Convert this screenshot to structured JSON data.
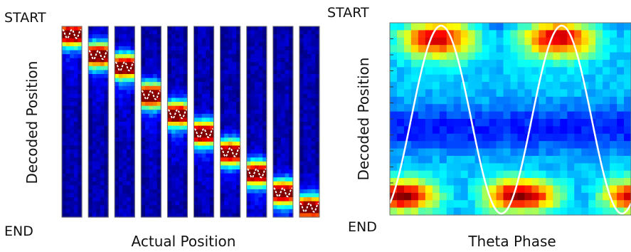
{
  "chart_data": [
    {
      "type": "heatmap",
      "panel": "left",
      "ylabel": "Decoded Position",
      "xlabel": "Actual Position",
      "y_top_label": "START",
      "y_bottom_label": "END",
      "colormap": "jet",
      "strips": 10,
      "decoded_peak_fraction": [
        0.04,
        0.15,
        0.21,
        0.36,
        0.46,
        0.56,
        0.66,
        0.77,
        0.87,
        0.95
      ],
      "overlay": "theta-phase sine (white dashed) at decoded peak"
    },
    {
      "type": "heatmap",
      "panel": "right",
      "ylabel": "Decoded Position",
      "xlabel": "Theta Phase",
      "y_top_label": "START",
      "y_bottom_label": "END",
      "colormap": "jet",
      "theta_cycles": 2,
      "overlay": "theta oscillation (white line)"
    }
  ],
  "colors": {
    "overlay": "#ffffff",
    "frame": "#6e6e6e",
    "background": "#ffffff"
  }
}
